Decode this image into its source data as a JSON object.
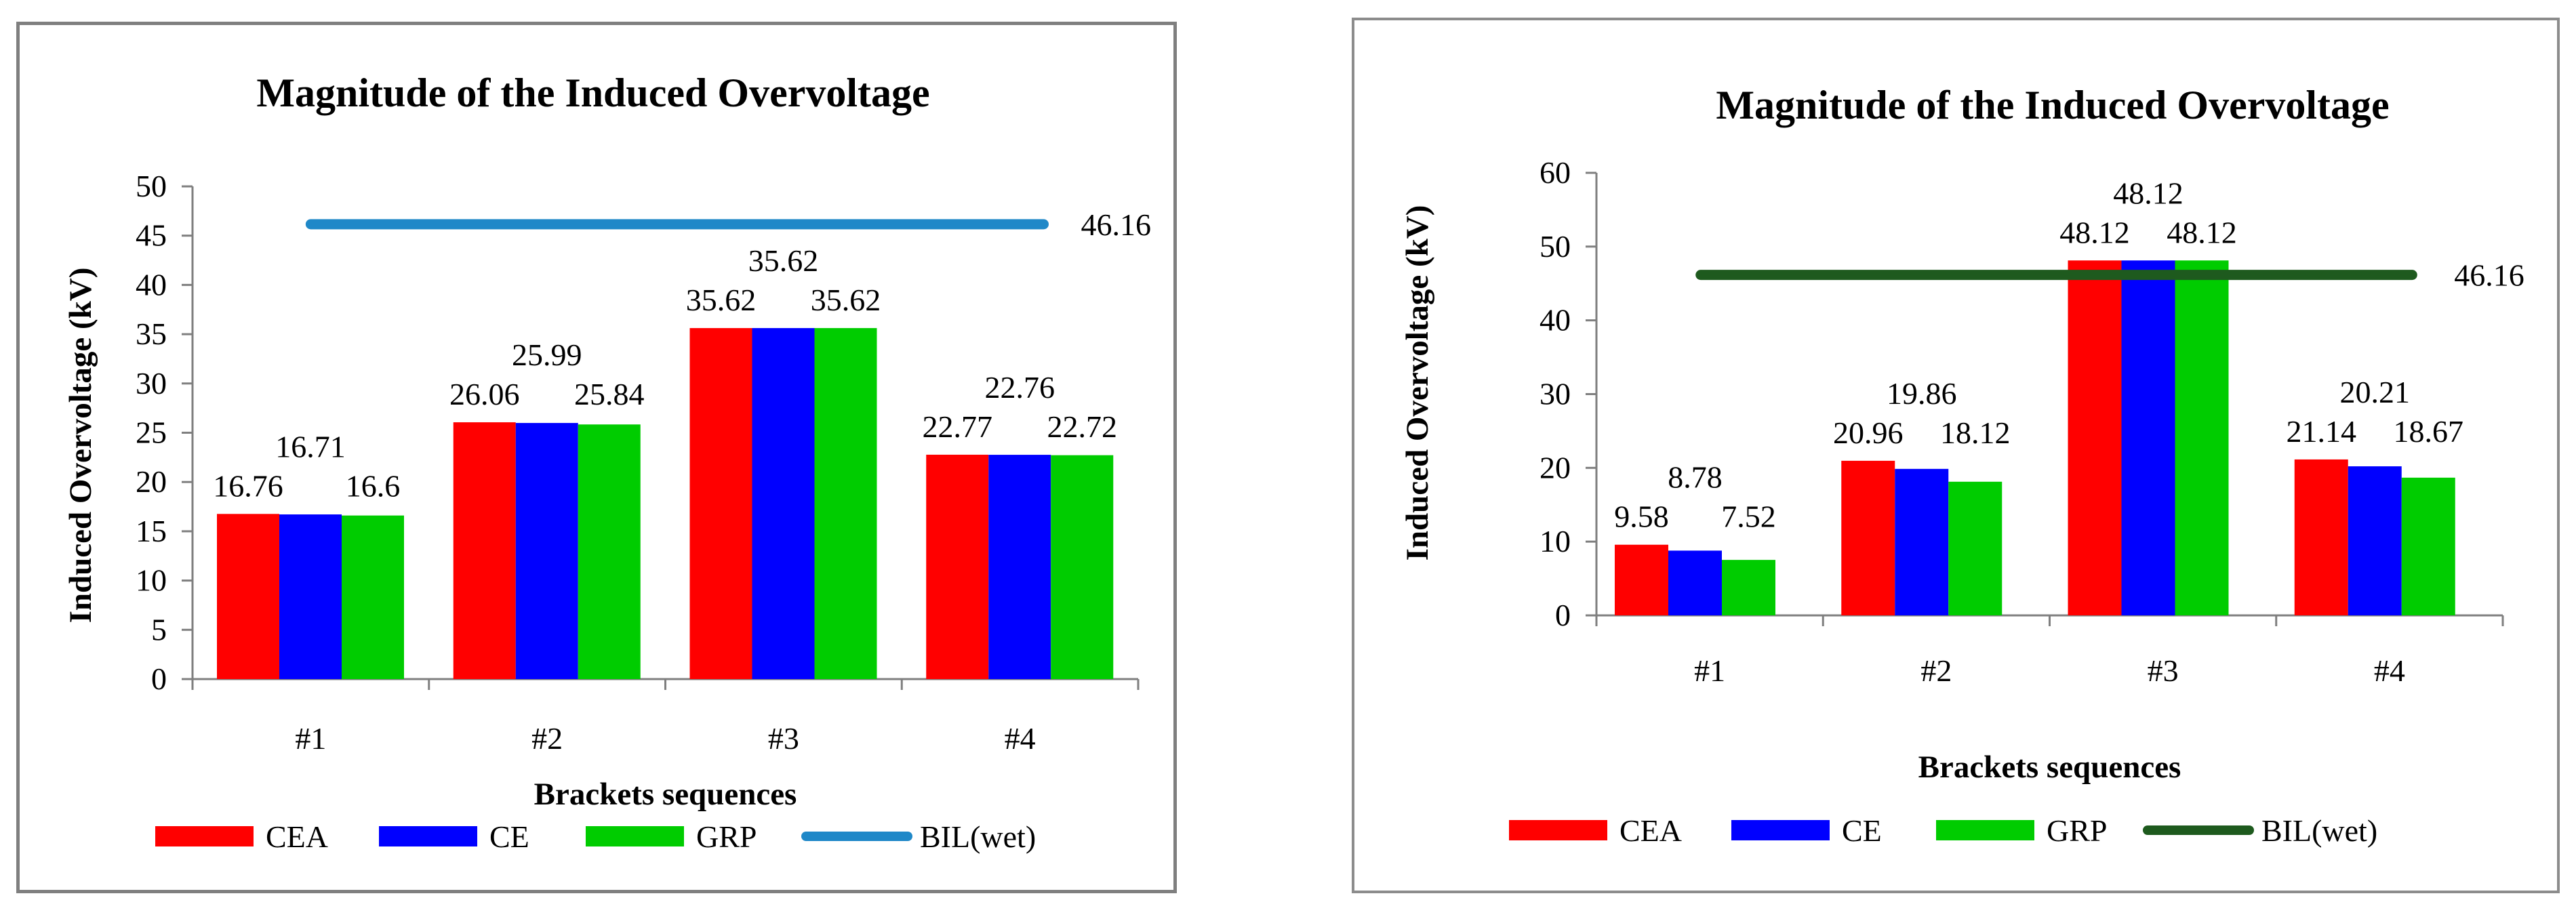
{
  "chart_data": [
    {
      "type": "bar",
      "title": "Magnitude of the Induced Overvoltage",
      "xlabel": "Brackets sequences",
      "ylabel": "Induced Overvoltage (kV)",
      "ylim": [
        0,
        50
      ],
      "ytick_step": 5,
      "categories": [
        "#1",
        "#2",
        "#3",
        "#4"
      ],
      "series": [
        {
          "name": "CEA",
          "color": "#ff0000",
          "values": [
            16.76,
            26.06,
            35.62,
            22.77
          ]
        },
        {
          "name": "CE",
          "color": "#0000ff",
          "values": [
            16.71,
            25.99,
            35.62,
            22.76
          ]
        },
        {
          "name": "GRP",
          "color": "#00cc00",
          "values": [
            16.6,
            25.84,
            35.62,
            22.72
          ]
        }
      ],
      "reference_line": {
        "name": "BIL(wet)",
        "value": 46.16,
        "color": "#1f88c8"
      },
      "legend_position": "bottom",
      "grid": false
    },
    {
      "type": "bar",
      "title": "Magnitude of the Induced Overvoltage",
      "xlabel": "Brackets sequences",
      "ylabel": "Induced Overvoltage (kV)",
      "ylim": [
        0,
        60
      ],
      "ytick_step": 10,
      "categories": [
        "#1",
        "#2",
        "#3",
        "#4"
      ],
      "series": [
        {
          "name": "CEA",
          "color": "#ff0000",
          "values": [
            9.58,
            20.96,
            48.12,
            21.14
          ]
        },
        {
          "name": "CE",
          "color": "#0000ff",
          "values": [
            8.78,
            19.86,
            48.12,
            20.21
          ]
        },
        {
          "name": "GRP",
          "color": "#00cc00",
          "values": [
            7.52,
            18.12,
            48.12,
            18.67
          ]
        }
      ],
      "reference_line": {
        "name": "BIL(wet)",
        "value": 46.16,
        "color": "#1e5a1e"
      },
      "legend_position": "bottom",
      "grid": false
    }
  ]
}
